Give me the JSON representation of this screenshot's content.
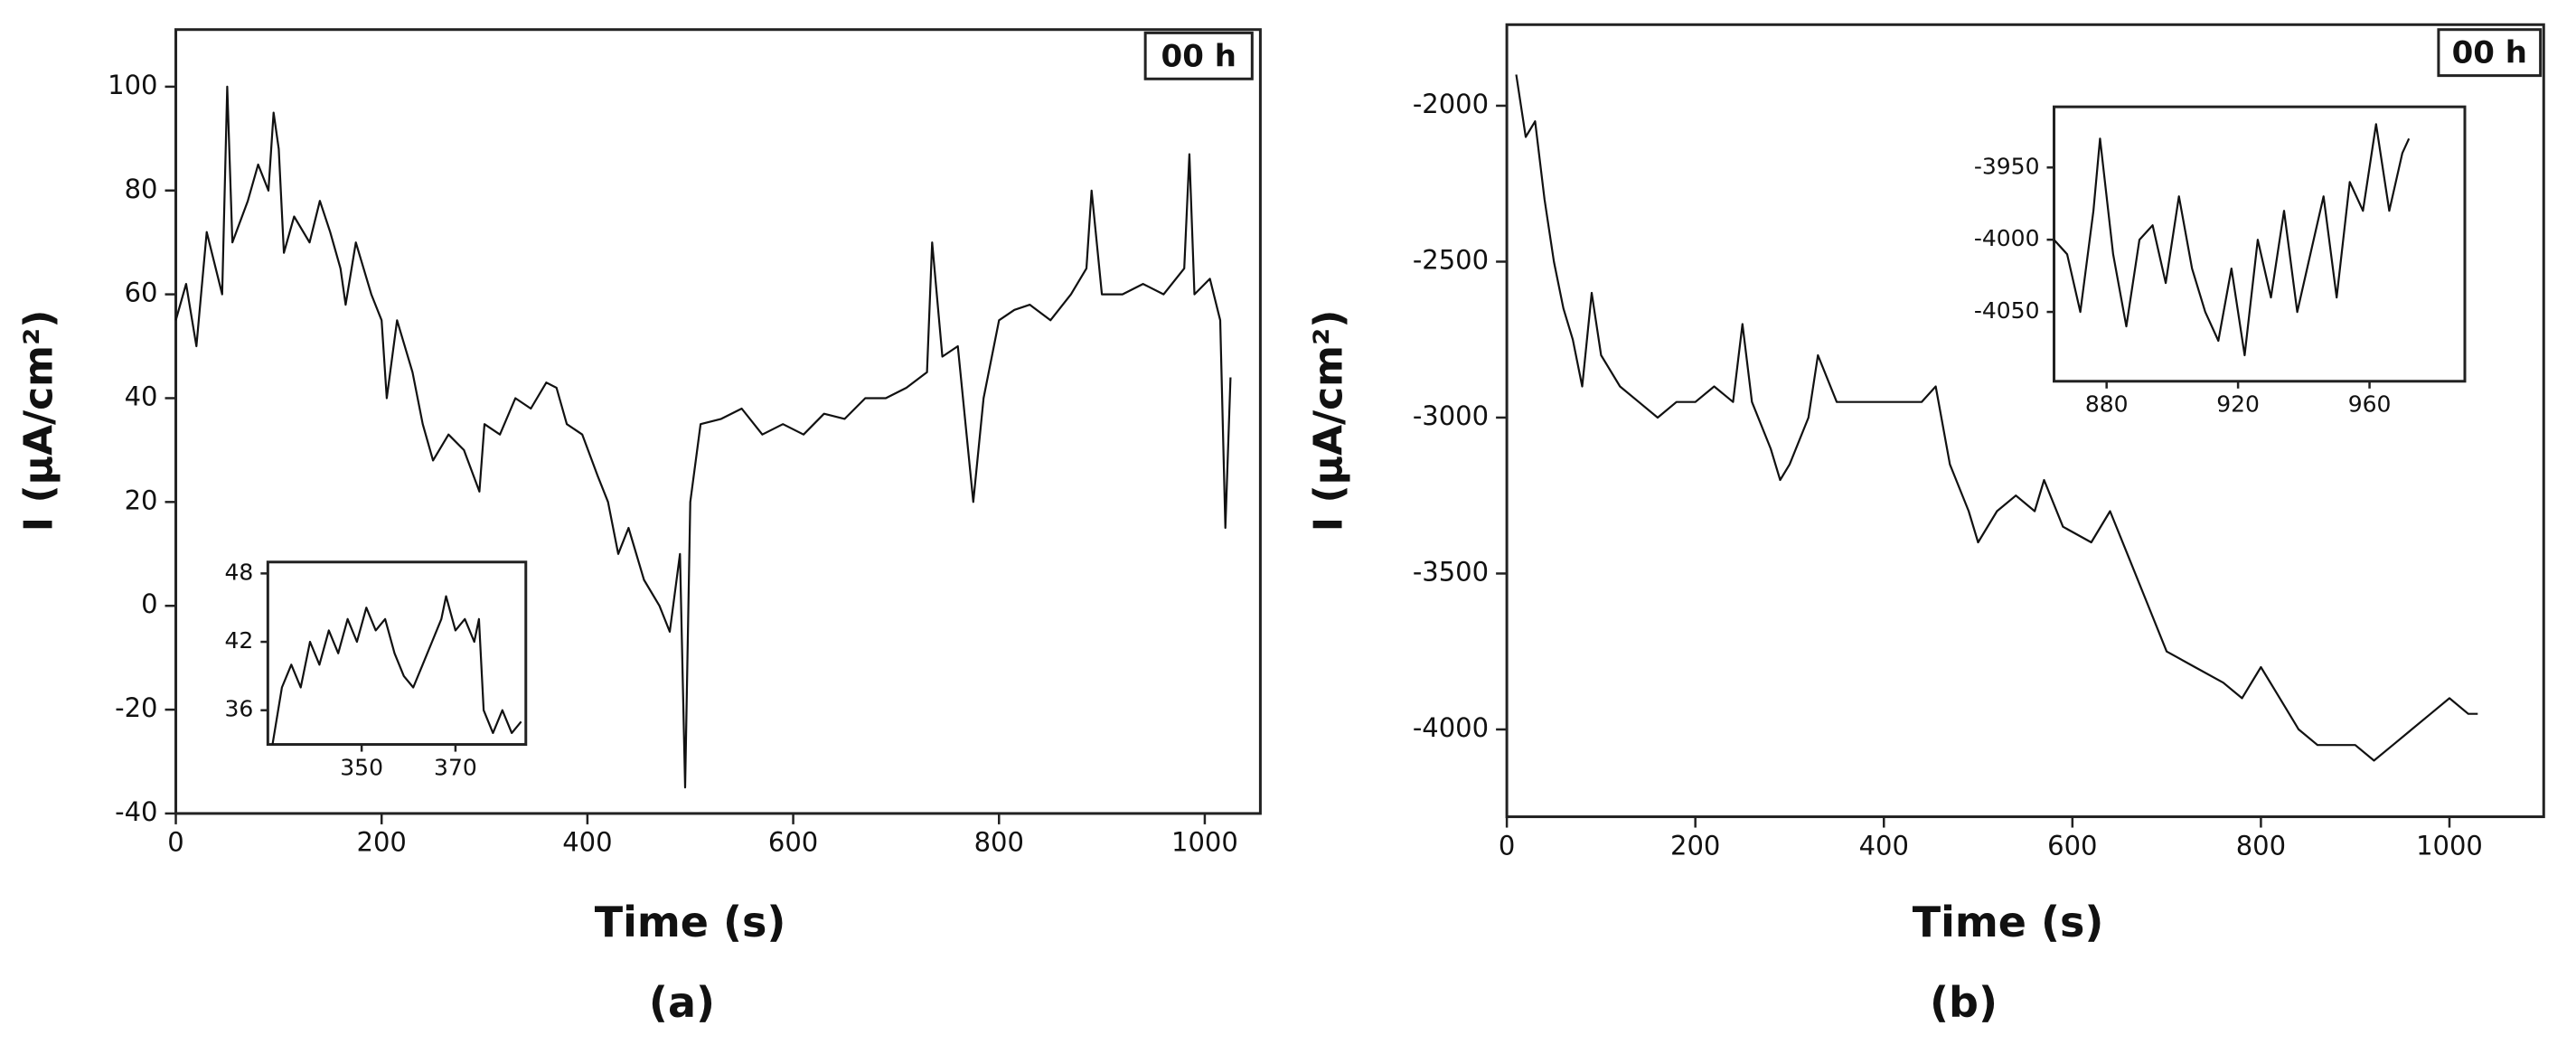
{
  "chart_data": [
    {
      "type": "line",
      "caption": "(a)",
      "annotation": "00 h",
      "xlabel": "Time (s)",
      "ylabel": "I (μA/cm²)",
      "color": "#111111",
      "xlim": [
        0,
        1054
      ],
      "ylim": [
        -40,
        111
      ],
      "xticks": [
        0,
        200,
        400,
        600,
        800,
        1000
      ],
      "yticks": [
        -40,
        -20,
        0,
        20,
        40,
        60,
        80,
        100
      ],
      "x": [
        0,
        10,
        20,
        30,
        45,
        50,
        55,
        70,
        80,
        90,
        95,
        100,
        105,
        115,
        130,
        140,
        150,
        160,
        165,
        175,
        190,
        200,
        205,
        215,
        230,
        240,
        250,
        265,
        280,
        295,
        300,
        315,
        330,
        345,
        360,
        370,
        380,
        395,
        410,
        420,
        430,
        440,
        455,
        470,
        480,
        490,
        495,
        500,
        510,
        530,
        550,
        570,
        590,
        610,
        630,
        650,
        670,
        690,
        710,
        730,
        735,
        745,
        760,
        775,
        785,
        800,
        815,
        830,
        850,
        870,
        885,
        890,
        900,
        920,
        940,
        960,
        980,
        985,
        990,
        1005,
        1015,
        1020,
        1025
      ],
      "values": [
        55,
        62,
        50,
        72,
        60,
        100,
        70,
        78,
        85,
        80,
        95,
        88,
        68,
        75,
        70,
        78,
        72,
        65,
        58,
        70,
        60,
        55,
        40,
        55,
        45,
        35,
        28,
        33,
        30,
        22,
        35,
        33,
        40,
        38,
        43,
        42,
        35,
        33,
        25,
        20,
        10,
        15,
        5,
        0,
        -5,
        10,
        -35,
        20,
        35,
        36,
        38,
        33,
        35,
        33,
        37,
        36,
        40,
        40,
        42,
        45,
        70,
        48,
        50,
        20,
        40,
        55,
        57,
        58,
        55,
        60,
        65,
        80,
        60,
        60,
        62,
        60,
        65,
        87,
        60,
        63,
        55,
        15,
        44
      ]
    },
    {
      "type": "line",
      "color": "#111111",
      "xlim": [
        330,
        385
      ],
      "ylim": [
        33,
        49
      ],
      "xticks": [
        350,
        370
      ],
      "yticks": [
        36,
        42,
        48
      ],
      "x": [
        331,
        333,
        335,
        337,
        339,
        341,
        343,
        345,
        347,
        349,
        351,
        353,
        355,
        357,
        359,
        361,
        363,
        365,
        367,
        368,
        370,
        372,
        374,
        375,
        376,
        378,
        380,
        382,
        384
      ],
      "values": [
        33,
        38,
        40,
        38,
        42,
        40,
        43,
        41,
        44,
        42,
        45,
        43,
        44,
        41,
        39,
        38,
        40,
        42,
        44,
        46,
        43,
        44,
        42,
        44,
        36,
        34,
        36,
        34,
        35
      ]
    },
    {
      "type": "line",
      "caption": "(b)",
      "annotation": "00 h",
      "xlabel": "Time (s)",
      "ylabel": "I (μA/cm²)",
      "color": "#111111",
      "xlim": [
        0,
        1100
      ],
      "ylim": [
        -4280,
        -1740
      ],
      "xticks": [
        0,
        200,
        400,
        600,
        800,
        1000
      ],
      "yticks": [
        -4000,
        -3500,
        -3000,
        -2500,
        -2000
      ],
      "x": [
        10,
        20,
        30,
        40,
        50,
        60,
        70,
        80,
        90,
        100,
        120,
        140,
        160,
        180,
        200,
        220,
        240,
        250,
        260,
        280,
        290,
        300,
        320,
        330,
        350,
        380,
        400,
        420,
        440,
        455,
        470,
        490,
        500,
        520,
        540,
        560,
        570,
        590,
        620,
        640,
        660,
        680,
        700,
        730,
        760,
        780,
        800,
        820,
        840,
        860,
        880,
        900,
        920,
        940,
        960,
        980,
        1000,
        1020,
        1030
      ],
      "values": [
        -1900,
        -2100,
        -2050,
        -2300,
        -2500,
        -2650,
        -2750,
        -2900,
        -2600,
        -2800,
        -2900,
        -2950,
        -3000,
        -2950,
        -2950,
        -2900,
        -2950,
        -2700,
        -2950,
        -3100,
        -3200,
        -3150,
        -3000,
        -2800,
        -2950,
        -2950,
        -2950,
        -2950,
        -2950,
        -2900,
        -3150,
        -3300,
        -3400,
        -3300,
        -3250,
        -3300,
        -3200,
        -3350,
        -3400,
        -3300,
        -3450,
        -3600,
        -3750,
        -3800,
        -3850,
        -3900,
        -3800,
        -3900,
        -4000,
        -4050,
        -4050,
        -4050,
        -4100,
        -4050,
        -4000,
        -3950,
        -3900,
        -3950,
        -3950
      ]
    },
    {
      "type": "line",
      "color": "#111111",
      "xlim": [
        864,
        989
      ],
      "ylim": [
        -4098,
        -3908
      ],
      "xticks": [
        880,
        920,
        960
      ],
      "yticks": [
        -4050,
        -4000,
        -3950
      ],
      "x": [
        864,
        868,
        872,
        876,
        878,
        882,
        886,
        890,
        894,
        898,
        902,
        906,
        910,
        914,
        918,
        922,
        926,
        930,
        934,
        938,
        942,
        946,
        950,
        954,
        958,
        962,
        966,
        970,
        972
      ],
      "values": [
        -4000,
        -4010,
        -4050,
        -3980,
        -3930,
        -4010,
        -4060,
        -4000,
        -3990,
        -4030,
        -3970,
        -4020,
        -4050,
        -4070,
        -4020,
        -4080,
        -4000,
        -4040,
        -3980,
        -4050,
        -4010,
        -3970,
        -4040,
        -3960,
        -3980,
        -3920,
        -3980,
        -3940,
        -3930
      ]
    }
  ]
}
